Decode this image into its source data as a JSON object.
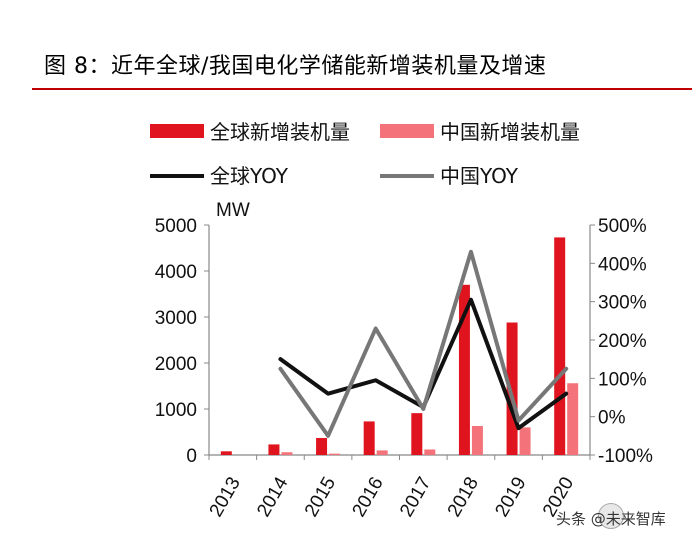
{
  "title": "图 8：近年全球/我国电化学储能新增装机量及增速",
  "watermark": "头条 @未来智库",
  "chart_data": {
    "type": "bar",
    "categories": [
      "2013",
      "2014",
      "2015",
      "2016",
      "2017",
      "2018",
      "2019",
      "2020"
    ],
    "ylabel": "MW",
    "ylim": [
      0,
      5000
    ],
    "yticks": [
      "0",
      "1000",
      "2000",
      "3000",
      "4000",
      "5000"
    ],
    "y2lim": [
      -100,
      500
    ],
    "y2ticks": [
      "-100%",
      "0%",
      "100%",
      "200%",
      "300%",
      "400%",
      "500%"
    ],
    "grid": false,
    "legend_position": "top",
    "series": [
      {
        "name": "全球新增装机量",
        "kind": "bar",
        "color": "#e0141e",
        "values": [
          80,
          230,
          370,
          730,
          910,
          3700,
          2880,
          4730
        ]
      },
      {
        "name": "中国新增装机量",
        "kind": "bar",
        "color": "#f4737a",
        "values": [
          0,
          60,
          30,
          100,
          120,
          630,
          600,
          1560
        ]
      },
      {
        "name": "全球YOY",
        "kind": "line",
        "axis": "right",
        "color": "#111111",
        "values": [
          null,
          150,
          60,
          95,
          25,
          305,
          -30,
          60
        ]
      },
      {
        "name": "中国YOY",
        "kind": "line",
        "axis": "right",
        "color": "#777777",
        "values": [
          null,
          125,
          -50,
          230,
          20,
          430,
          -10,
          125
        ]
      }
    ]
  }
}
